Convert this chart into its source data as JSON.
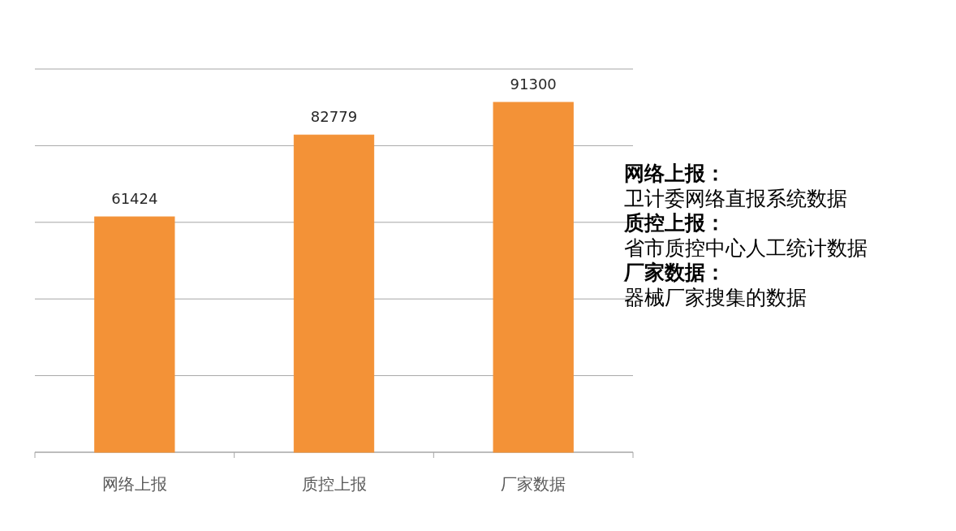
{
  "chart_data": {
    "type": "bar",
    "categories": [
      "网络上报",
      "质控上报",
      "厂家数据"
    ],
    "values": [
      61424,
      82779,
      91300
    ],
    "color": "#f39237",
    "ylim": [
      0,
      100000
    ],
    "yticks": [
      {
        "value": 0,
        "label": null
      },
      {
        "value": 20000,
        "label": null
      },
      {
        "value": 40000,
        "label": null
      },
      {
        "value": 60000,
        "label": null
      },
      {
        "value": 80000,
        "label": null
      },
      {
        "value": 100000,
        "label": null
      }
    ],
    "tick_labels": "x",
    "grid": "y",
    "data_labels": true,
    "annotations": [
      "网络上报：",
      "卫计委网络直报系统数据",
      "质控上报：",
      "省市质控中心人工统计数据",
      "厂家数据：",
      "器械厂家搜集的数据"
    ]
  }
}
